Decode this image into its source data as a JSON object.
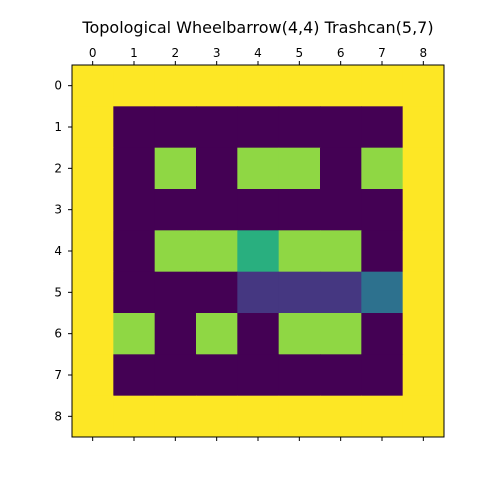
{
  "chart_data": {
    "type": "heatmap",
    "title": "Topological Wheelbarrow(4,4) Trashcan(5,7)",
    "xlabel": "",
    "ylabel": "",
    "x_ticks": [
      "0",
      "1",
      "2",
      "3",
      "4",
      "5",
      "6",
      "7",
      "8"
    ],
    "y_ticks": [
      "0",
      "1",
      "2",
      "3",
      "4",
      "5",
      "6",
      "7",
      "8"
    ],
    "x_ticks_position": "top",
    "grid": false,
    "colormap": "viridis",
    "value_range": [
      0,
      1
    ],
    "values": [
      [
        1.0,
        1.0,
        1.0,
        1.0,
        1.0,
        1.0,
        1.0,
        1.0,
        1.0
      ],
      [
        1.0,
        0.0,
        0.0,
        0.0,
        0.0,
        0.0,
        0.0,
        0.0,
        1.0
      ],
      [
        1.0,
        0.0,
        0.8,
        0.0,
        0.8,
        0.8,
        0.0,
        0.8,
        1.0
      ],
      [
        1.0,
        0.0,
        0.0,
        0.0,
        0.0,
        0.0,
        0.0,
        0.0,
        1.0
      ],
      [
        1.0,
        0.0,
        0.8,
        0.8,
        0.6,
        0.8,
        0.8,
        0.0,
        1.0
      ],
      [
        1.0,
        0.0,
        0.0,
        0.0,
        0.15,
        0.15,
        0.15,
        0.4,
        1.0
      ],
      [
        1.0,
        0.8,
        0.0,
        0.8,
        0.0,
        0.8,
        0.8,
        0.0,
        1.0
      ],
      [
        1.0,
        0.0,
        0.0,
        0.0,
        0.0,
        0.0,
        0.0,
        0.0,
        1.0
      ],
      [
        1.0,
        1.0,
        1.0,
        1.0,
        1.0,
        1.0,
        1.0,
        1.0,
        1.0
      ]
    ],
    "palette": {
      "0": "#440154",
      "0.15": "#453781",
      "0.4": "#2d718e",
      "0.6": "#29af7f",
      "0.8": "#8fd744",
      "1": "#fde725"
    }
  }
}
